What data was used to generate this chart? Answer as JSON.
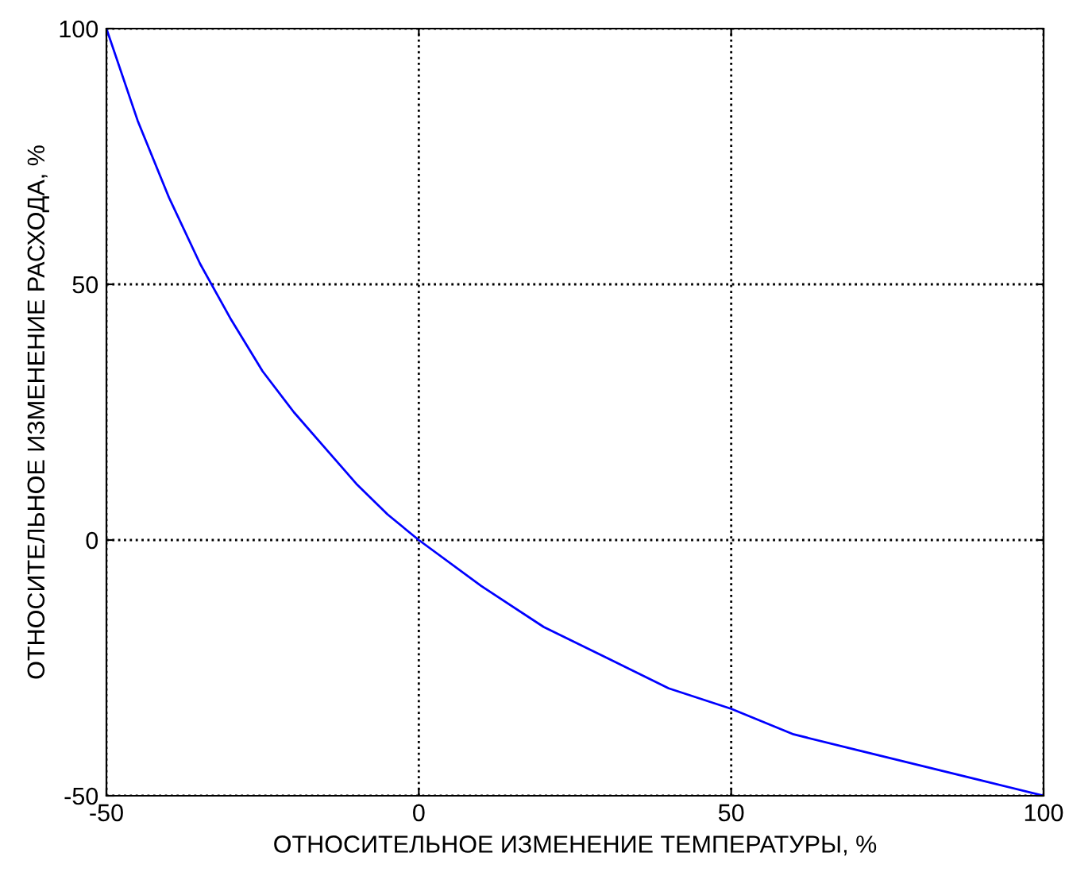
{
  "chart_data": {
    "type": "line",
    "xlabel": "ОТНОСИТЕЛЬНОЕ ИЗМЕНЕНИЕ ТЕМПЕРАТУРЫ, %",
    "ylabel": "ОТНОСИТЕЛЬНОЕ ИЗМЕНЕНИЕ РАСХОДА, %",
    "x": [
      -50,
      -45,
      -40,
      -35,
      -30,
      -25,
      -20,
      -15,
      -10,
      -5,
      0,
      10,
      20,
      30,
      40,
      50,
      60,
      70,
      80,
      90,
      100
    ],
    "series": [
      {
        "color": "#0000ff",
        "values": [
          100,
          82,
          67,
          54,
          43,
          33,
          25,
          18,
          11,
          5,
          0,
          -9,
          -17,
          -23,
          -29,
          -33,
          -38,
          -41,
          -44,
          -47,
          -50
        ]
      }
    ],
    "xlim": [
      -50,
      100
    ],
    "ylim": [
      -50,
      100
    ],
    "xticks": [
      -50,
      0,
      50,
      100
    ],
    "yticks": [
      -50,
      0,
      50,
      100
    ],
    "grid": true,
    "line_style": "solid",
    "marker": "none"
  }
}
